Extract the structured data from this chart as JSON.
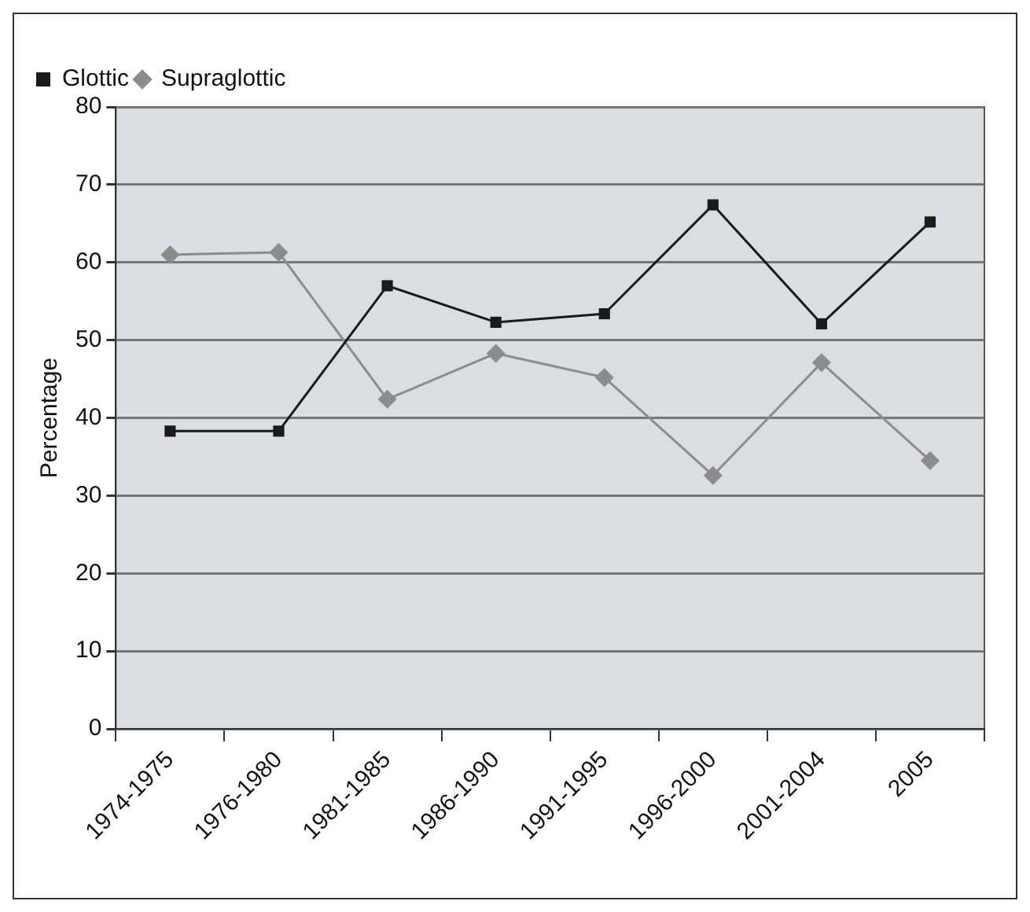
{
  "chart_data": {
    "type": "line",
    "ylabel": "Percentage",
    "categories": [
      "1974-1975",
      "1976-1980",
      "1981-1985",
      "1986-1990",
      "1991-1995",
      "1996-2000",
      "2001-2004",
      "2005"
    ],
    "series": [
      {
        "name": "Glottic",
        "color": "#1a1a1a",
        "marker": "square",
        "values": [
          38.3,
          38.3,
          57.0,
          52.3,
          53.4,
          67.4,
          52.1,
          65.2
        ]
      },
      {
        "name": "Supraglottic",
        "color": "#8c8c8c",
        "marker": "diamond",
        "values": [
          61.0,
          61.3,
          42.4,
          48.3,
          45.2,
          32.6,
          47.1,
          34.5
        ]
      }
    ],
    "ylim": [
      0,
      80
    ],
    "yticks": [
      0,
      10,
      20,
      30,
      40,
      50,
      60,
      70,
      80
    ],
    "grid": "y",
    "legend": "top left"
  }
}
